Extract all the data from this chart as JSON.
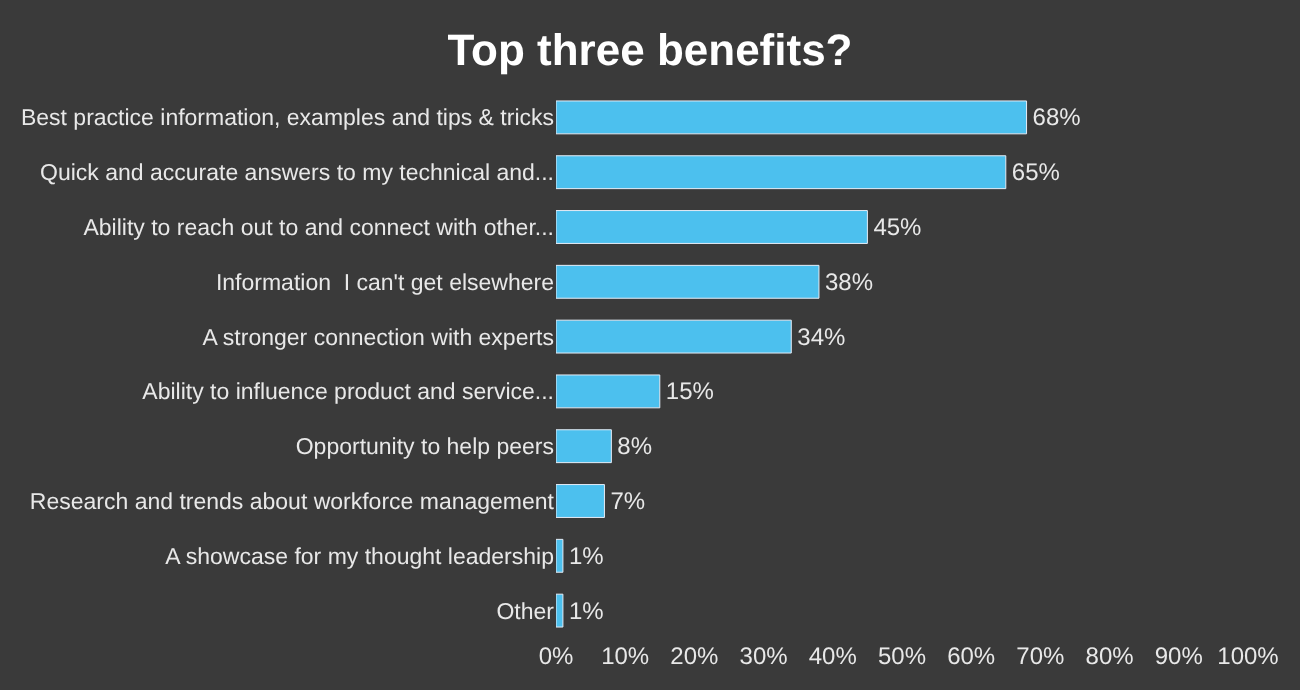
{
  "chart_data": {
    "type": "bar",
    "orientation": "horizontal",
    "title": "Top three benefits?",
    "categories": [
      "Best practice information, examples and tips & tricks",
      "Quick and accurate answers to my technical and...",
      "Ability to reach out to and connect with other...",
      "Information  I can't get elsewhere",
      "A stronger connection with experts",
      "Ability to influence product and service...",
      "Opportunity to help peers",
      "Research and trends about workforce management",
      "A showcase for my thought leadership",
      "Other"
    ],
    "values": [
      68,
      65,
      45,
      38,
      34,
      15,
      8,
      7,
      1,
      1
    ],
    "value_labels": [
      "68%",
      "65%",
      "45%",
      "38%",
      "34%",
      "15%",
      "8%",
      "7%",
      "1%",
      "1%"
    ],
    "color": "#4cc0ee",
    "xlim": [
      0,
      100
    ],
    "xticks": [
      {
        "value": 0,
        "label": "0%"
      },
      {
        "value": 10,
        "label": "10%"
      },
      {
        "value": 20,
        "label": "20%"
      },
      {
        "value": 30,
        "label": "30%"
      },
      {
        "value": 40,
        "label": "40%"
      },
      {
        "value": 50,
        "label": "50%"
      },
      {
        "value": 60,
        "label": "60%"
      },
      {
        "value": 70,
        "label": "70%"
      },
      {
        "value": 80,
        "label": "80%"
      },
      {
        "value": 90,
        "label": "90%"
      },
      {
        "value": 100,
        "label": "100%"
      }
    ],
    "grid": false
  }
}
